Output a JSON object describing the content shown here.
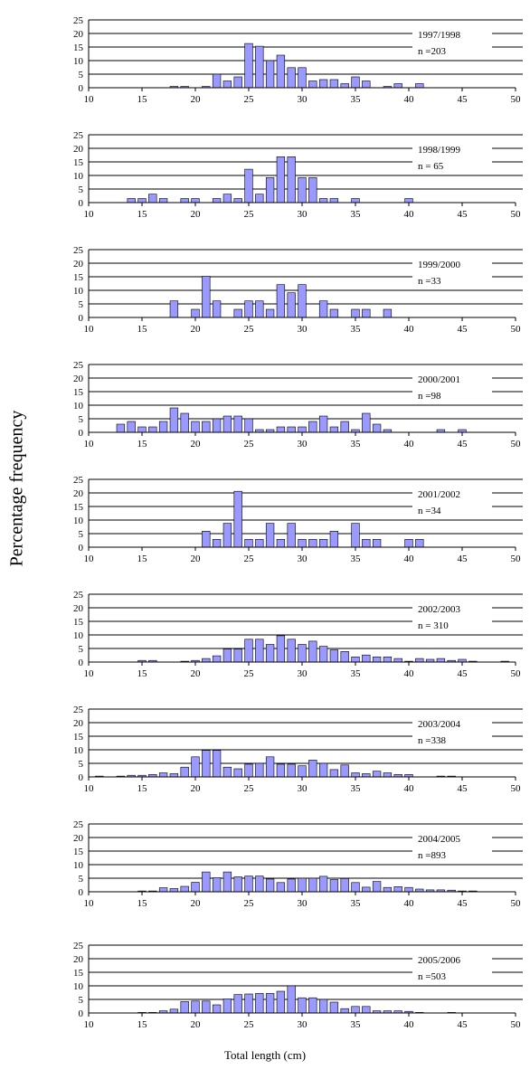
{
  "figure": {
    "ylabel": "Percentage frequency",
    "xlabel": "Total length (cm)"
  },
  "chart_data": [
    {
      "type": "bar",
      "title": "1997/1998",
      "subtitle": "n =203",
      "xlim": [
        10,
        50
      ],
      "ylim": [
        0,
        25
      ],
      "yticks": [
        "0",
        "5",
        "10",
        "15",
        "20",
        "25"
      ],
      "xticks": [
        "10",
        "15",
        "20",
        "25",
        "30",
        "35",
        "40",
        "45",
        "50"
      ],
      "x": [
        18,
        19,
        21,
        22,
        23,
        24,
        25,
        26,
        27,
        28,
        29,
        30,
        31,
        32,
        33,
        34,
        35,
        36,
        38,
        39,
        41
      ],
      "values": [
        0.5,
        0.5,
        0.5,
        5,
        2.5,
        4,
        16.3,
        15.3,
        10,
        12,
        7.4,
        7.4,
        2.5,
        3,
        3,
        1.5,
        4,
        2.5,
        0.5,
        1.5,
        1.5
      ]
    },
    {
      "type": "bar",
      "title": "1998/1999",
      "subtitle": "n = 65",
      "xlim": [
        10,
        50
      ],
      "ylim": [
        0,
        25
      ],
      "yticks": [
        "0",
        "5",
        "10",
        "15",
        "20",
        "25"
      ],
      "xticks": [
        "10",
        "15",
        "20",
        "25",
        "30",
        "35",
        "40",
        "45",
        "50"
      ],
      "x": [
        14,
        15,
        16,
        17,
        19,
        20,
        22,
        23,
        24,
        25,
        26,
        27,
        28,
        29,
        30,
        31,
        32,
        33,
        35,
        40
      ],
      "values": [
        1.5,
        1.5,
        3.1,
        1.5,
        1.5,
        1.5,
        1.5,
        3.1,
        1.5,
        12.3,
        3.1,
        9.2,
        16.9,
        16.9,
        9.2,
        9.2,
        1.5,
        1.5,
        1.5,
        1.5
      ]
    },
    {
      "type": "bar",
      "title": "1999/2000",
      "subtitle": "n =33",
      "xlim": [
        10,
        50
      ],
      "ylim": [
        0,
        25
      ],
      "yticks": [
        "0",
        "5",
        "10",
        "15",
        "20",
        "25"
      ],
      "xticks": [
        "10",
        "15",
        "20",
        "25",
        "30",
        "35",
        "40",
        "45",
        "50"
      ],
      "x": [
        18,
        20,
        21,
        22,
        24,
        25,
        26,
        27,
        28,
        29,
        30,
        32,
        33,
        35,
        36,
        38
      ],
      "values": [
        6.1,
        3,
        15.2,
        6.1,
        3,
        6.1,
        6.1,
        3,
        12.1,
        9.1,
        12.1,
        6.1,
        3,
        3,
        3,
        3
      ]
    },
    {
      "type": "bar",
      "title": "2000/2001",
      "subtitle": "n =98",
      "xlim": [
        10,
        50
      ],
      "ylim": [
        0,
        25
      ],
      "yticks": [
        "0",
        "5",
        "10",
        "15",
        "20",
        "25"
      ],
      "xticks": [
        "10",
        "15",
        "20",
        "25",
        "30",
        "35",
        "40",
        "45",
        "50"
      ],
      "x": [
        13,
        14,
        15,
        16,
        17,
        18,
        19,
        20,
        21,
        22,
        23,
        24,
        25,
        26,
        27,
        28,
        29,
        30,
        31,
        32,
        33,
        34,
        35,
        36,
        37,
        38,
        43,
        45
      ],
      "values": [
        3,
        4,
        2,
        2,
        4,
        9,
        7,
        4,
        4,
        5,
        6,
        6,
        5,
        1,
        1,
        2,
        2,
        2,
        4,
        6,
        2,
        4,
        1,
        7,
        3,
        1,
        1,
        1
      ]
    },
    {
      "type": "bar",
      "title": "2001/2002",
      "subtitle": "n =34",
      "xlim": [
        10,
        50
      ],
      "ylim": [
        0,
        25
      ],
      "yticks": [
        "0",
        "5",
        "10",
        "15",
        "20",
        "25"
      ],
      "xticks": [
        "10",
        "15",
        "20",
        "25",
        "30",
        "35",
        "40",
        "45",
        "50"
      ],
      "x": [
        21,
        22,
        23,
        24,
        25,
        26,
        27,
        28,
        29,
        30,
        31,
        32,
        33,
        35,
        36,
        37,
        40,
        41
      ],
      "values": [
        5.9,
        2.9,
        8.8,
        20.6,
        2.9,
        2.9,
        8.8,
        2.9,
        8.8,
        2.9,
        2.9,
        2.9,
        5.9,
        8.8,
        2.9,
        2.9,
        2.9,
        2.9
      ]
    },
    {
      "type": "bar",
      "title": "2002/2003",
      "subtitle": "n = 310",
      "xlim": [
        10,
        50
      ],
      "ylim": [
        0,
        25
      ],
      "yticks": [
        "0",
        "5",
        "10",
        "15",
        "20",
        "25"
      ],
      "xticks": [
        "10",
        "15",
        "20",
        "25",
        "30",
        "35",
        "40",
        "45",
        "50"
      ],
      "x": [
        15,
        16,
        19,
        20,
        21,
        22,
        23,
        24,
        25,
        26,
        27,
        28,
        29,
        30,
        31,
        32,
        33,
        34,
        35,
        36,
        37,
        38,
        39,
        40,
        41,
        42,
        43,
        44,
        45,
        46,
        49
      ],
      "values": [
        0.6,
        0.6,
        0.3,
        0.6,
        1.3,
        2.3,
        4.8,
        4.8,
        8.4,
        8.4,
        6.5,
        9.7,
        8.4,
        6.5,
        7.7,
        5.8,
        4.5,
        3.9,
        1.9,
        2.6,
        1.9,
        1.9,
        1.3,
        0.3,
        1.3,
        1,
        1.3,
        0.6,
        1,
        0.3,
        0.3
      ]
    },
    {
      "type": "bar",
      "title": "2003/2004",
      "subtitle": "n =338",
      "xlim": [
        10,
        50
      ],
      "ylim": [
        0,
        25
      ],
      "yticks": [
        "0",
        "5",
        "10",
        "15",
        "20",
        "25"
      ],
      "xticks": [
        "10",
        "15",
        "20",
        "25",
        "30",
        "35",
        "40",
        "45",
        "50"
      ],
      "x": [
        11,
        13,
        14,
        15,
        16,
        17,
        18,
        19,
        20,
        21,
        22,
        23,
        24,
        25,
        26,
        27,
        28,
        29,
        30,
        31,
        32,
        33,
        34,
        35,
        36,
        37,
        38,
        39,
        40,
        43,
        44
      ],
      "values": [
        0.3,
        0.3,
        0.6,
        0.6,
        0.9,
        1.5,
        1.2,
        3.6,
        7.4,
        9.8,
        9.8,
        3.6,
        3,
        4.7,
        5,
        7.4,
        4.7,
        4.7,
        4.1,
        6.2,
        5,
        2.7,
        4.4,
        1.5,
        1.2,
        2.1,
        1.5,
        0.9,
        0.9,
        0.3,
        0.3
      ]
    },
    {
      "type": "bar",
      "title": "2004/2005",
      "subtitle": "n =893",
      "xlim": [
        10,
        50
      ],
      "ylim": [
        0,
        25
      ],
      "yticks": [
        "0",
        "5",
        "10",
        "15",
        "20",
        "25"
      ],
      "xticks": [
        "10",
        "15",
        "20",
        "25",
        "30",
        "35",
        "40",
        "45",
        "50"
      ],
      "x": [
        15,
        16,
        17,
        18,
        19,
        20,
        21,
        22,
        23,
        24,
        25,
        26,
        27,
        28,
        29,
        30,
        31,
        32,
        33,
        34,
        35,
        36,
        37,
        38,
        39,
        40,
        41,
        42,
        43,
        44,
        45,
        46
      ],
      "values": [
        0.3,
        0.3,
        1.5,
        1.2,
        2,
        3.5,
        7.3,
        5.2,
        7.3,
        5.5,
        5.8,
        5.8,
        4.7,
        3.4,
        4.7,
        5,
        5,
        5.7,
        4.5,
        4.9,
        3.4,
        1.7,
        3.8,
        1.6,
        1.9,
        1.6,
        1,
        0.7,
        0.7,
        0.6,
        0.3,
        0.3
      ]
    },
    {
      "type": "bar",
      "title": "2005/2006",
      "subtitle": "n =503",
      "xlim": [
        10,
        50
      ],
      "ylim": [
        0,
        25
      ],
      "yticks": [
        "0",
        "5",
        "10",
        "15",
        "20",
        "25"
      ],
      "xticks": [
        "10",
        "15",
        "20",
        "25",
        "30",
        "35",
        "40",
        "45",
        "50"
      ],
      "x": [
        15,
        16,
        17,
        18,
        19,
        20,
        21,
        22,
        23,
        24,
        25,
        26,
        27,
        28,
        29,
        30,
        31,
        32,
        33,
        34,
        35,
        36,
        37,
        38,
        39,
        40,
        41,
        44
      ],
      "values": [
        0.2,
        0.2,
        0.8,
        1.4,
        4.2,
        4.4,
        4.4,
        3,
        5.2,
        6.8,
        7,
        7.2,
        7.2,
        8,
        10,
        5.6,
        5.6,
        5,
        4,
        1.6,
        2.4,
        2.4,
        0.8,
        0.8,
        0.8,
        0.6,
        0.2,
        0.2
      ]
    }
  ]
}
